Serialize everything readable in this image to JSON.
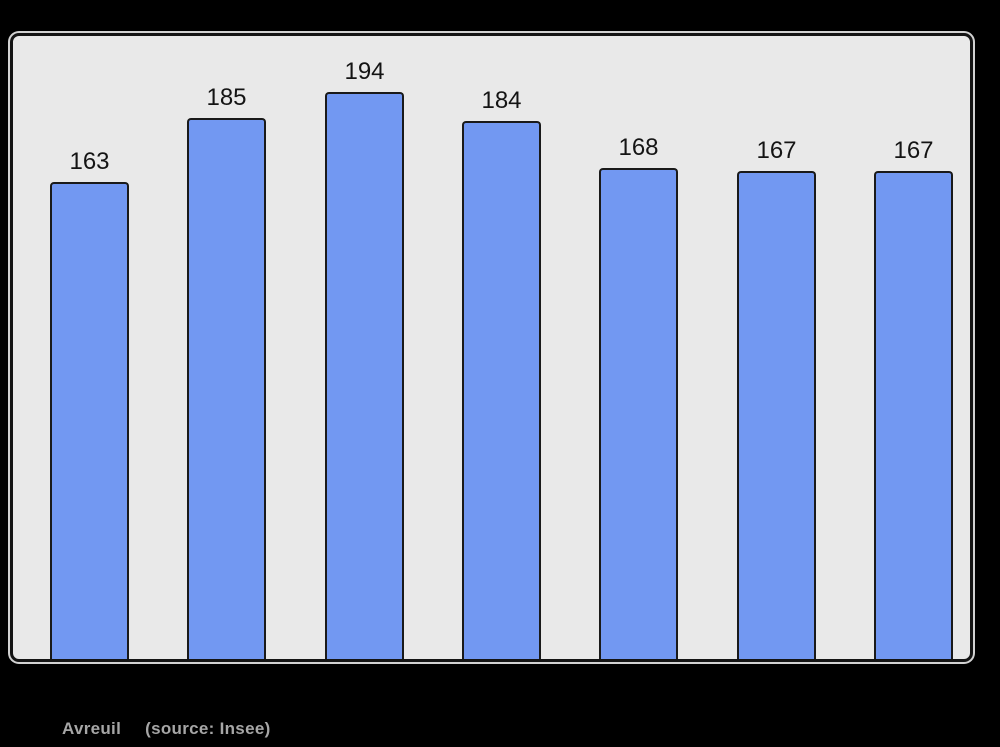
{
  "caption": {
    "commune": "Avreuil",
    "source": "(source: Insee)"
  },
  "colors": {
    "page_bg": "#000000",
    "plot_bg": "#e9e9e9",
    "frame_border": "#141414",
    "frame_glow": "#d2d2d2",
    "bar_fill": "#7298f2",
    "bar_border": "#1a1a1a",
    "label_color": "#141414",
    "caption_color": "#a6a6a6"
  },
  "chart_data": {
    "type": "bar",
    "title": "",
    "xlabel": "",
    "ylabel": "",
    "categories": [],
    "values": [
      163,
      185,
      194,
      184,
      168,
      167,
      167
    ],
    "ylim": [
      0,
      213
    ],
    "grid": false,
    "legend": false,
    "value_labels_shown": true
  }
}
